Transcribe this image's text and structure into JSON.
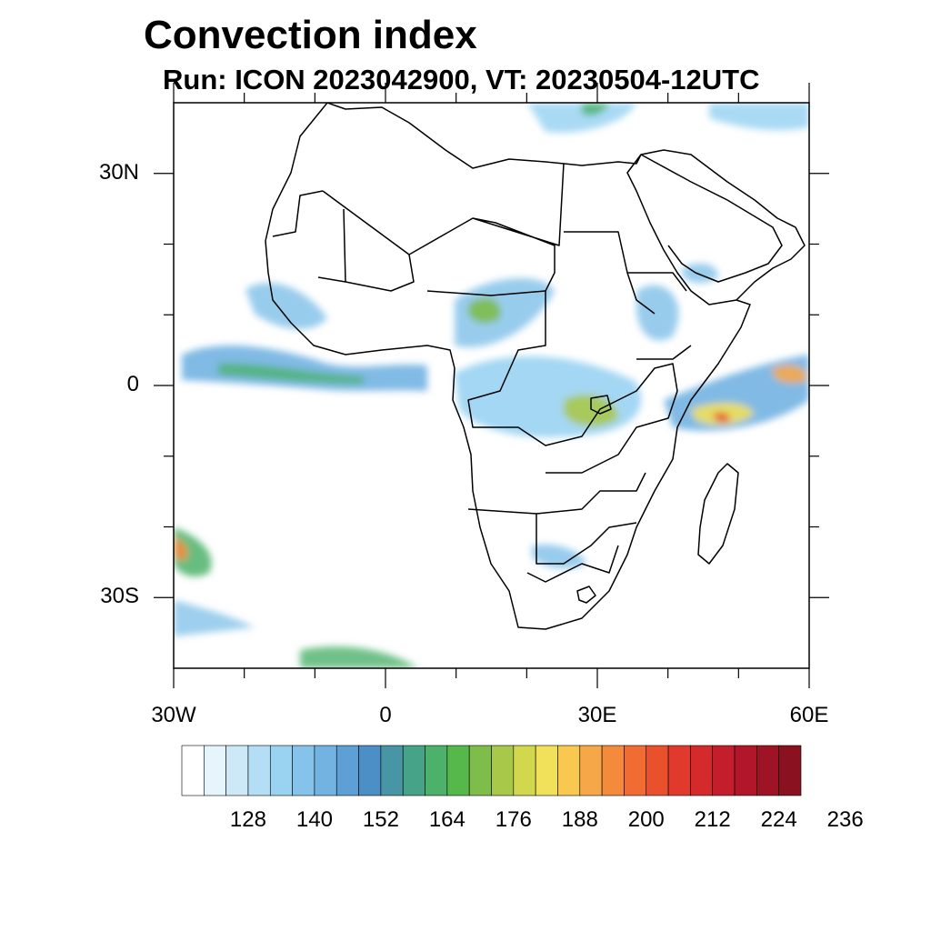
{
  "title": "Convection index",
  "subtitle": "Run: ICON 2023042900,  VT: 20230504-12UTC",
  "map": {
    "lon_range": [
      -30,
      60
    ],
    "lat_range": [
      -40,
      40
    ],
    "lat_labels": [
      {
        "lat": 30,
        "text": "30N"
      },
      {
        "lat": 0,
        "text": "0"
      },
      {
        "lat": -30,
        "text": "30S"
      }
    ],
    "lon_labels": [
      {
        "lon": -30,
        "text": "30W"
      },
      {
        "lon": 0,
        "text": "0"
      },
      {
        "lon": 30,
        "text": "30E"
      },
      {
        "lon": 60,
        "text": "60E"
      }
    ]
  },
  "colorbar": {
    "colors": [
      "#ffffff",
      "#e6f4fc",
      "#cde9f8",
      "#b4def5",
      "#9ad3f2",
      "#86c3ea",
      "#72b3e2",
      "#5e9fd6",
      "#4b8fc6",
      "#4895a6",
      "#47a388",
      "#4cb16a",
      "#56b84a",
      "#7ebd4a",
      "#a8c84a",
      "#d2d84d",
      "#f0e05a",
      "#f8c850",
      "#f6a848",
      "#f48a3c",
      "#f06c32",
      "#e9502c",
      "#e13a2c",
      "#d42a2c",
      "#c41e2c",
      "#b2162a",
      "#9e1426",
      "#8a1220"
    ],
    "labels": [
      "128",
      "140",
      "152",
      "164",
      "176",
      "188",
      "200",
      "212",
      "224",
      "236"
    ],
    "label_start_index": 2,
    "label_step": 3
  }
}
